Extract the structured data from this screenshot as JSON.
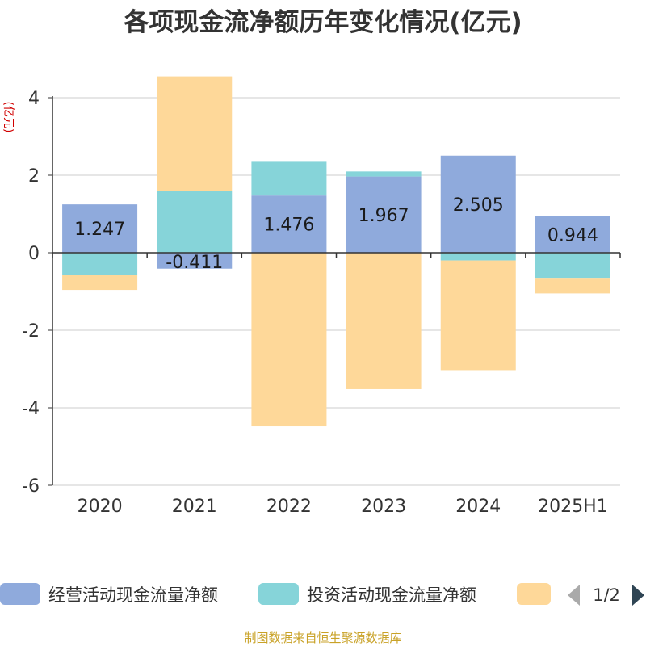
{
  "chart_data": {
    "type": "bar",
    "stacked": true,
    "title": "各项现金流净额历年变化情况(亿元)",
    "ylabel": "(亿元)",
    "categories": [
      "2020",
      "2021",
      "2022",
      "2023",
      "2024",
      "2025H1"
    ],
    "ylim": [
      -6,
      4
    ],
    "yticks": [
      4,
      2,
      0,
      -2,
      -4,
      -6
    ],
    "grid": true,
    "legend_position": "bottom",
    "series": [
      {
        "name": "经营活动现金流量净额",
        "color": "#8faadc",
        "values": [
          1.247,
          -0.411,
          1.476,
          1.967,
          2.505,
          0.944
        ],
        "labels": [
          "1.247",
          "-0.411",
          "1.476",
          "1.967",
          "2.505",
          "0.944"
        ]
      },
      {
        "name": "投资活动现金流量净额",
        "color": "#86d4d9",
        "values": [
          -0.58,
          1.6,
          0.87,
          0.13,
          -0.2,
          -0.65
        ]
      },
      {
        "name": "",
        "color": "#fed899",
        "values": [
          -0.38,
          2.95,
          -4.48,
          -3.52,
          -2.83,
          -0.4
        ]
      }
    ]
  },
  "legend": {
    "page": "1/2",
    "prev_icon": "triangle-left-icon",
    "next_icon": "triangle-right-icon"
  },
  "source_text": "制图数据来自恒生聚源数据库"
}
